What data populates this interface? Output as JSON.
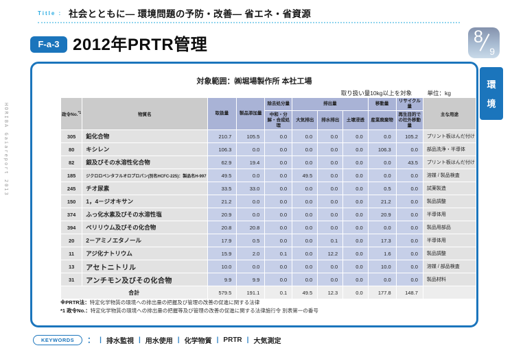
{
  "header": {
    "title_label": "Title :",
    "section_title": "社会とともに― 環境問題の予防・改善― 省エネ・省資源",
    "code_badge": "F-a-3",
    "main_title": "2012年PRTR管理",
    "page_current": "8",
    "page_total": "9",
    "side_tab_char1": "環",
    "side_tab_char2": "境",
    "spine_text": "HORIBA Gaiareport 2013"
  },
  "panel": {
    "scope_title": "対象範囲：㈱堀場製作所 本社工場",
    "handling_note": "取り扱い量10kg以上を対象",
    "unit_note": "単位：kg",
    "footnote1_label": "※PRTR法：",
    "footnote1_text": "特定化学物質の環境への排出量の把握及び管理の改善の促進に関する法律",
    "footnote2_label": "*1 政令No.：",
    "footnote2_text": "特定化学物質の環境への排出量の把握等及び管理の改善の促進に関する法律施行令 別表第一の番号"
  },
  "keywords": {
    "label": "KEYWORDS",
    "lead": "：",
    "items": [
      "排水監視",
      "用水使用",
      "化学物質",
      "PRTR",
      "大気測定"
    ]
  },
  "chart_data": {
    "type": "table",
    "header": {
      "cabinet_no": "政令No.",
      "cabinet_no_sup": "*1",
      "substance": "物質名",
      "handling": "取扱量",
      "product_add": "製品添加量",
      "removal_group": "除去処分量",
      "removal_sub": "中和・分解・合成処理",
      "emission_group": "排出量",
      "emission_air": "大気排出",
      "emission_water": "排水排出",
      "emission_soil": "土壌浸透",
      "transfer_group": "移動量",
      "transfer_waste": "産業廃棄物",
      "recycle_group": "リサイクル量",
      "recycle_sub": "再生目的での社外移動量",
      "usage": "主な用途"
    },
    "rows": [
      {
        "no": "305",
        "name": "鉛化合物",
        "values": [
          "210.7",
          "105.5",
          "0.0",
          "0.0",
          "0.0",
          "0.0",
          "0.0",
          "105.2"
        ],
        "use": "プリント板はんだ付け"
      },
      {
        "no": "80",
        "name": "キシレン",
        "values": [
          "106.3",
          "0.0",
          "0.0",
          "0.0",
          "0.0",
          "0.0",
          "106.3",
          "0.0"
        ],
        "use": "部品洗浄・半導体"
      },
      {
        "no": "82",
        "name": "銀及びその水溶性化合物",
        "values": [
          "62.9",
          "19.4",
          "0.0",
          "0.0",
          "0.0",
          "0.0",
          "0.0",
          "43.5"
        ],
        "use": "プリント板はんだ付け"
      },
      {
        "no": "185",
        "name": "ジクロロペンタフルオロプロパン(別名HCFC-225)：製品名H-997",
        "values": [
          "49.5",
          "0.0",
          "0.0",
          "49.5",
          "0.0",
          "0.0",
          "0.0",
          "0.0"
        ],
        "use": "溶媒 / 製品検査",
        "size": "small"
      },
      {
        "no": "245",
        "name": "チオ尿素",
        "values": [
          "33.5",
          "33.0",
          "0.0",
          "0.0",
          "0.0",
          "0.0",
          "0.5",
          "0.0"
        ],
        "use": "試薬製造"
      },
      {
        "no": "150",
        "name": "1，4－ジオキサン",
        "values": [
          "21.2",
          "0.0",
          "0.0",
          "0.0",
          "0.0",
          "0.0",
          "21.2",
          "0.0"
        ],
        "use": "製品調整"
      },
      {
        "no": "374",
        "name": "ふっ化水素及びその水溶性塩",
        "values": [
          "20.9",
          "0.0",
          "0.0",
          "0.0",
          "0.0",
          "0.0",
          "20.9",
          "0.0"
        ],
        "use": "半導体用"
      },
      {
        "no": "394",
        "name": "ベリリウム及びその化合物",
        "values": [
          "20.8",
          "20.8",
          "0.0",
          "0.0",
          "0.0",
          "0.0",
          "0.0",
          "0.0"
        ],
        "use": "製品用部品"
      },
      {
        "no": "20",
        "name": "2－アミノエタノール",
        "values": [
          "17.9",
          "0.5",
          "0.0",
          "0.0",
          "0.1",
          "0.0",
          "17.3",
          "0.0"
        ],
        "use": "半導体用"
      },
      {
        "no": "11",
        "name": "アジ化ナトリウム",
        "values": [
          "15.9",
          "2.0",
          "0.1",
          "0.0",
          "12.2",
          "0.0",
          "1.6",
          "0.0"
        ],
        "use": "製品調整"
      },
      {
        "no": "13",
        "name": "アセトニトリル",
        "values": [
          "10.0",
          "0.0",
          "0.0",
          "0.0",
          "0.0",
          "0.0",
          "10.0",
          "0.0"
        ],
        "use": "溶媒 / 部品検査",
        "size": "large"
      },
      {
        "no": "31",
        "name": "アンチモン及びその化合物",
        "values": [
          "9.9",
          "9.9",
          "0.0",
          "0.0",
          "0.0",
          "0.0",
          "0.0",
          "0.0"
        ],
        "use": "製品材料",
        "size": "large"
      }
    ],
    "total": {
      "label": "合計",
      "values": [
        "579.5",
        "191.1",
        "0.1",
        "49.5",
        "12.3",
        "0.0",
        "177.8",
        "148.7"
      ],
      "use": ""
    }
  },
  "colors": {
    "brand_blue": "#1b75bc",
    "accent_cyan": "#29abe2",
    "header_gray": "#cbcbcb",
    "header_lavender": "#a9b3d6",
    "cell_blue": "#c6cfe8",
    "cell_gray": "#e2e2e2"
  }
}
